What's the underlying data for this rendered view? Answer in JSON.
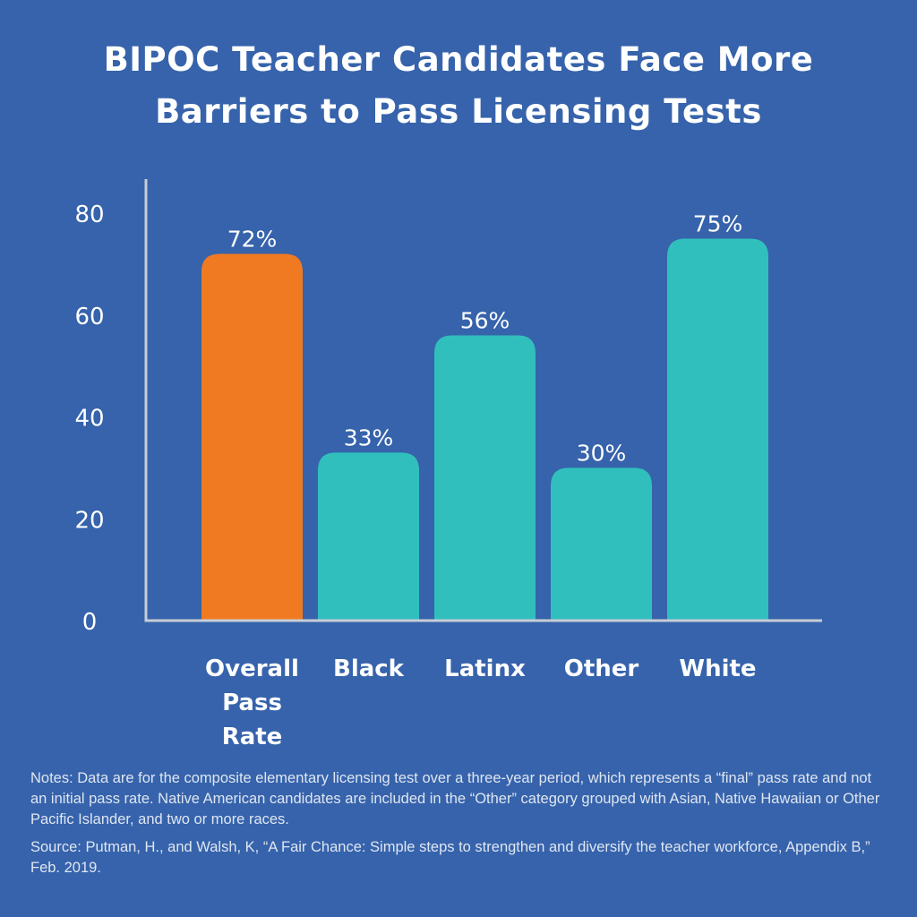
{
  "title_lines": [
    "BIPOC Teacher Candidates Face More",
    "Barriers to Pass Licensing Tests"
  ],
  "colors": {
    "background": "#3663ab",
    "highlight": "#f07a22",
    "bar": "#31bfbd",
    "axis": "#c8cdd6"
  },
  "chart_data": {
    "type": "bar",
    "title": "BIPOC Teacher Candidates Face More Barriers to Pass Licensing Tests",
    "categories": [
      [
        "Overall",
        "Pass",
        "Rate"
      ],
      [
        "Black"
      ],
      [
        "Latinx"
      ],
      [
        "Other"
      ],
      [
        "White"
      ]
    ],
    "values": [
      72,
      33,
      56,
      30,
      75
    ],
    "data_labels": [
      "72%",
      "33%",
      "56%",
      "30%",
      "75%"
    ],
    "highlight_index": 0,
    "xlabel": "",
    "ylabel": "",
    "ylim": [
      0,
      80
    ],
    "yticks": [
      "0",
      "20",
      "40",
      "60",
      "80"
    ],
    "grid": false
  },
  "notes": "Notes: Data are for the composite elementary licensing test over a three-year period, which represents a “final” pass rate and not an initial pass rate. Native American candidates are included in the “Other” category grouped with Asian, Native Hawaiian or Other Pacific Islander, and two or more races.",
  "source": "Source: Putman, H., and Walsh, K, “A Fair Chance: Simple steps to strengthen and diversify the teacher workforce, Appendix B,” Feb. 2019."
}
